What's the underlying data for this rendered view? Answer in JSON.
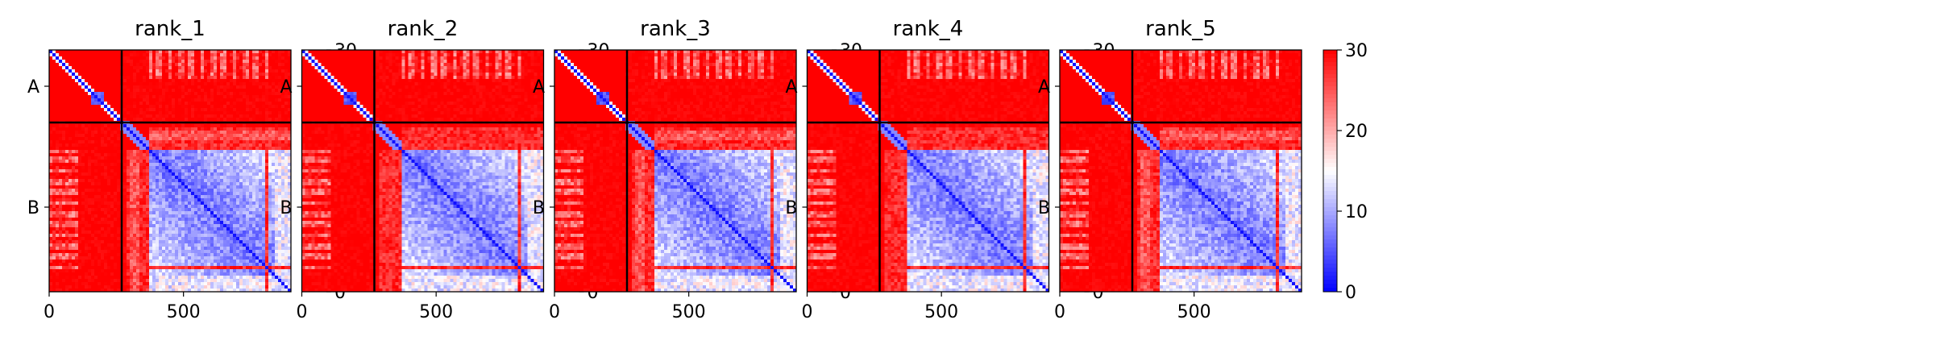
{
  "chart_data": [
    {
      "type": "heatmap",
      "title": "rank_1",
      "x_ticks": [
        0,
        500
      ],
      "y_tick_labels": [
        "A",
        "B"
      ],
      "chain_boundary": 270,
      "n_residues": 900,
      "colorbar": {
        "min": 0,
        "max": 30,
        "ticks": [
          0,
          10,
          20,
          30
        ],
        "colormap": "bwr",
        "low_color": "#0000ff",
        "mid_color": "#ffffff",
        "high_color": "#ff0000"
      },
      "blocks": {
        "A_A_diag_blue_center": 180,
        "B_B_blue_start": 370,
        "B_B_red_band_at": 810
      }
    },
    {
      "type": "heatmap",
      "title": "rank_2",
      "x_ticks": [
        0,
        500
      ],
      "y_tick_labels": [
        "A",
        "B"
      ],
      "chain_boundary": 270,
      "n_residues": 900,
      "colorbar": {
        "min": 0,
        "max": 30,
        "ticks": [
          0,
          10,
          20,
          30
        ],
        "colormap": "bwr",
        "low_color": "#0000ff",
        "mid_color": "#ffffff",
        "high_color": "#ff0000"
      },
      "blocks": {
        "A_A_diag_blue_center": 180,
        "B_B_blue_start": 370,
        "B_B_red_band_at": 810
      }
    },
    {
      "type": "heatmap",
      "title": "rank_3",
      "x_ticks": [
        0,
        500
      ],
      "y_tick_labels": [
        "A",
        "B"
      ],
      "chain_boundary": 270,
      "n_residues": 900,
      "colorbar": {
        "min": 0,
        "max": 30,
        "ticks": [
          0,
          10,
          20,
          30
        ],
        "colormap": "bwr",
        "low_color": "#0000ff",
        "mid_color": "#ffffff",
        "high_color": "#ff0000"
      },
      "blocks": {
        "A_A_diag_blue_center": 180,
        "B_B_blue_start": 370,
        "B_B_red_band_at": 810
      }
    },
    {
      "type": "heatmap",
      "title": "rank_4",
      "x_ticks": [
        0,
        500
      ],
      "y_tick_labels": [
        "A",
        "B"
      ],
      "chain_boundary": 270,
      "n_residues": 900,
      "colorbar": {
        "min": 0,
        "max": 30,
        "ticks": [
          0,
          10,
          20,
          30
        ],
        "colormap": "bwr",
        "low_color": "#0000ff",
        "mid_color": "#ffffff",
        "high_color": "#ff0000"
      },
      "blocks": {
        "A_A_diag_blue_center": 180,
        "B_B_blue_start": 370,
        "B_B_red_band_at": 810
      }
    },
    {
      "type": "heatmap",
      "title": "rank_5",
      "x_ticks": [
        0,
        500
      ],
      "y_tick_labels": [
        "A",
        "B"
      ],
      "chain_boundary": 270,
      "n_residues": 900,
      "colorbar": {
        "min": 0,
        "max": 30,
        "ticks": [
          0,
          10,
          20,
          30
        ],
        "colormap": "bwr",
        "low_color": "#0000ff",
        "mid_color": "#ffffff",
        "high_color": "#ff0000"
      },
      "blocks": {
        "A_A_diag_blue_center": 180,
        "B_B_blue_start": 370,
        "B_B_red_band_at": 810
      }
    }
  ]
}
